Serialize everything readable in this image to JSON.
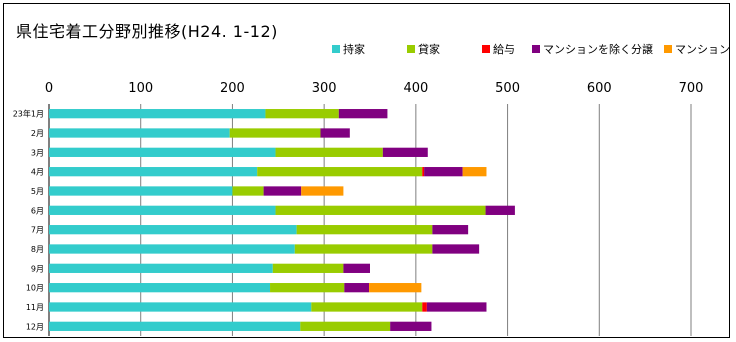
{
  "chart_data": {
    "type": "bar",
    "orientation": "horizontal",
    "stacked": true,
    "title": "県住宅着工分野別推移(H24. 1-12)",
    "categories": [
      "23年1月",
      "2月",
      "3月",
      "4月",
      "5月",
      "6月",
      "7月",
      "8月",
      "9月",
      "10月",
      "11月",
      "12月"
    ],
    "series": [
      {
        "name": "持家",
        "color": "#33CCCC",
        "values": [
          236,
          197,
          247,
          227,
          200,
          247,
          270,
          268,
          244,
          241,
          286,
          274
        ]
      },
      {
        "name": "貸家",
        "color": "#99CC00",
        "values": [
          80,
          99,
          117,
          180,
          34,
          229,
          148,
          150,
          77,
          81,
          121,
          98
        ]
      },
      {
        "name": "給与",
        "color": "#FF0000",
        "values": [
          0,
          0,
          0,
          2,
          0,
          0,
          0,
          0,
          0,
          0,
          5,
          0
        ]
      },
      {
        "name": "マンションを除く分譲",
        "color": "#800080",
        "values": [
          53,
          32,
          49,
          42,
          41,
          32,
          39,
          51,
          29,
          27,
          65,
          45
        ]
      },
      {
        "name": "マンション",
        "color": "#FF9900",
        "values": [
          0,
          0,
          0,
          26,
          46,
          0,
          0,
          0,
          0,
          57,
          0,
          0
        ]
      }
    ],
    "xlim": [
      0,
      700
    ],
    "x_ticks": [
      0,
      100,
      200,
      300,
      400,
      500,
      600,
      700
    ],
    "grid": true,
    "legend_position": "top-right"
  }
}
